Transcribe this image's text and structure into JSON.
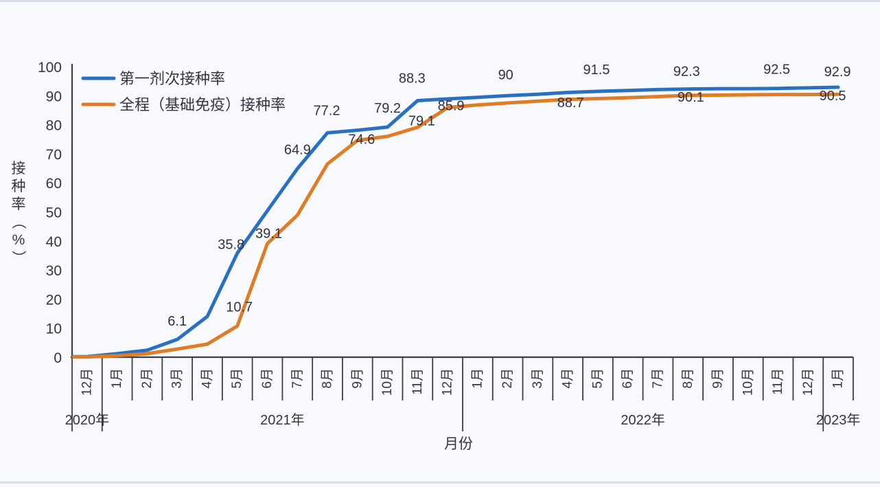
{
  "page": {
    "background": "#f7f9fc",
    "edge_strip_color": "#cfd7e4"
  },
  "chart_data": {
    "type": "line",
    "title": "",
    "xlabel": "月份",
    "ylabel": "接种率（%）",
    "ylim": [
      0,
      100
    ],
    "ytick_step": 10,
    "grid": false,
    "legend_position": "top-left",
    "axis_color": "#3c3c48",
    "text_color": "#35353f",
    "x_categories": [
      "12月",
      "1月",
      "2月",
      "3月",
      "4月",
      "5月",
      "6月",
      "7月",
      "8月",
      "9月",
      "10月",
      "11月",
      "12月",
      "1月",
      "2月",
      "3月",
      "4月",
      "5月",
      "6月",
      "7月",
      "8月",
      "9月",
      "10月",
      "11月",
      "12月",
      "1月"
    ],
    "year_groups": [
      {
        "label": "2020年",
        "from": 0,
        "to": 1
      },
      {
        "label": "2021年",
        "from": 1,
        "to": 13
      },
      {
        "label": "2022年",
        "from": 13,
        "to": 25
      },
      {
        "label": "2023年",
        "from": 25,
        "to": 26
      }
    ],
    "series": [
      {
        "name": "第一剂次接种率",
        "color": "#2a70c0",
        "values": [
          0.2,
          1.2,
          2.4,
          6.1,
          14,
          35.8,
          50.4,
          64.9,
          77.2,
          78.1,
          79.2,
          88.3,
          88.9,
          89.4,
          90,
          90.5,
          91.1,
          91.5,
          91.8,
          92.1,
          92.3,
          92.4,
          92.4,
          92.5,
          92.7,
          92.9
        ],
        "point_labels": [
          {
            "i": 3,
            "text": "6.1",
            "dx": 0,
            "dy": -27
          },
          {
            "i": 5,
            "text": "35.8",
            "dx": -9,
            "dy": -13
          },
          {
            "i": 7,
            "text": "64.9",
            "dx": 0,
            "dy": -28
          },
          {
            "i": 8,
            "text": "77.2",
            "dx": -1,
            "dy": -33
          },
          {
            "i": 10,
            "text": "79.2",
            "dx": 0,
            "dy": -28
          },
          {
            "i": 11,
            "text": "88.3",
            "dx": -8,
            "dy": -33
          },
          {
            "i": 14,
            "text": "90",
            "dx": -3,
            "dy": -31
          },
          {
            "i": 17,
            "text": "91.5",
            "dx": -2,
            "dy": -32
          },
          {
            "i": 20,
            "text": "92.3",
            "dx": -2,
            "dy": -26
          },
          {
            "i": 23,
            "text": "92.5",
            "dx": -2,
            "dy": -28
          },
          {
            "i": 25,
            "text": "92.9",
            "dx": -1,
            "dy": -23
          }
        ]
      },
      {
        "name": "全程（基础免疫）接种率",
        "color": "#e07b26",
        "values": [
          0.1,
          0.5,
          1.2,
          2.8,
          4.5,
          10.7,
          39.1,
          48.9,
          66.5,
          74.6,
          76,
          79.1,
          85.9,
          86.8,
          87.5,
          88.1,
          88.7,
          89,
          89.3,
          89.7,
          90.1,
          90.2,
          90.3,
          90.4,
          90.4,
          90.5
        ],
        "point_labels": [
          {
            "i": 5,
            "text": "10.7",
            "dx": 3,
            "dy": -28
          },
          {
            "i": 6,
            "text": "39.1",
            "dx": 2,
            "dy": -15
          },
          {
            "i": 9,
            "text": "74.6",
            "dx": 6,
            "dy": -2
          },
          {
            "i": 11,
            "text": "79.1",
            "dx": 6,
            "dy": -10
          },
          {
            "i": 12,
            "text": "85.9",
            "dx": 5,
            "dy": -3
          },
          {
            "i": 16,
            "text": "88.7",
            "dx": 4,
            "dy": 4
          },
          {
            "i": 20,
            "text": "90.1",
            "dx": 4,
            "dy": 2
          },
          {
            "i": 25,
            "text": "90.5",
            "dx": -8,
            "dy": 2
          }
        ]
      }
    ]
  }
}
